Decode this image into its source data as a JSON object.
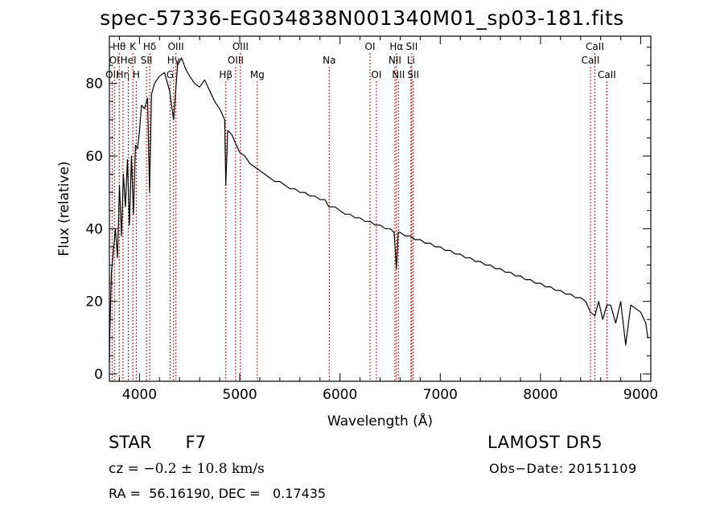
{
  "chart_data": {
    "type": "line",
    "title": "spec-57336-EG034838N001340M01_sp03-181.fits",
    "xlabel": "Wavelength (Å)",
    "ylabel": "Flux (relative)",
    "xlim": [
      3700,
      9100
    ],
    "ylim": [
      -2,
      93
    ],
    "x_ticks": [
      4000,
      5000,
      6000,
      7000,
      8000,
      9000
    ],
    "y_ticks": [
      0,
      20,
      40,
      60,
      80
    ],
    "grid": false,
    "line_color": "#000000",
    "marker_color": "#cc0000",
    "series": [
      {
        "x": [
          3700,
          3705,
          3720,
          3740,
          3760,
          3780,
          3800,
          3820,
          3840,
          3860,
          3880,
          3900,
          3920,
          3940,
          3960,
          3980,
          4000,
          4020,
          4050,
          4080,
          4100,
          4120,
          4150,
          4200,
          4250,
          4300,
          4340,
          4380,
          4420,
          4460,
          4500,
          4550,
          4600,
          4650,
          4700,
          4750,
          4800,
          4850,
          4861,
          4880,
          4920,
          4950,
          5000,
          5050,
          5100,
          5150,
          5200,
          5250,
          5300,
          5350,
          5400,
          5450,
          5500,
          5550,
          5600,
          5650,
          5700,
          5750,
          5800,
          5850,
          5890,
          5950,
          6000,
          6050,
          6100,
          6150,
          6200,
          6250,
          6300,
          6350,
          6400,
          6450,
          6500,
          6540,
          6563,
          6580,
          6600,
          6650,
          6700,
          6750,
          6800,
          6850,
          6900,
          6950,
          7000,
          7050,
          7100,
          7150,
          7200,
          7250,
          7300,
          7350,
          7400,
          7450,
          7500,
          7550,
          7600,
          7650,
          7700,
          7750,
          7800,
          7850,
          7900,
          7950,
          8000,
          8050,
          8100,
          8150,
          8200,
          8250,
          8300,
          8350,
          8400,
          8450,
          8498,
          8542,
          8580,
          8620,
          8662,
          8700,
          8750,
          8800,
          8850,
          8900,
          8950,
          9000,
          9050,
          9070
        ],
        "y": [
          3,
          12,
          28,
          34,
          40,
          32,
          52,
          38,
          55,
          46,
          59,
          41,
          60,
          44,
          63,
          62,
          67,
          74,
          73,
          76,
          50,
          77,
          80,
          82,
          83,
          78,
          70,
          85,
          87,
          84,
          82,
          80,
          79,
          81,
          78,
          75,
          73,
          70,
          52,
          67,
          66,
          64,
          61,
          60,
          58,
          57,
          56,
          55,
          54,
          53,
          53,
          52,
          51,
          51,
          50,
          50,
          49,
          49,
          48,
          48,
          46,
          46,
          45,
          44,
          44,
          43,
          43,
          42,
          42,
          41,
          41,
          40,
          40,
          39,
          29,
          39,
          39,
          38,
          38,
          37,
          37,
          36,
          36,
          35,
          35,
          34,
          34,
          33,
          33,
          32,
          32,
          31,
          31,
          30,
          30,
          29,
          29,
          28,
          28,
          27,
          27,
          26,
          26,
          25,
          25,
          24,
          24,
          23,
          23,
          22,
          22,
          21,
          21,
          20,
          17,
          16,
          20,
          15,
          19,
          19,
          14,
          20,
          8,
          19,
          18,
          17,
          14,
          10
        ]
      }
    ],
    "line_markers": [
      {
        "label": "OII",
        "wavelength": 3727,
        "row": 3
      },
      {
        "label": "Hθ",
        "wavelength": 3798,
        "row": 1
      },
      {
        "label": "OI",
        "wavelength": 3750,
        "row": 2
      },
      {
        "label": "Hη",
        "wavelength": 3835,
        "row": 3
      },
      {
        "label": "HeI",
        "wavelength": 3889,
        "row": 2
      },
      {
        "label": "K",
        "wavelength": 3934,
        "row": 1
      },
      {
        "label": "H",
        "wavelength": 3968,
        "row": 3
      },
      {
        "label": "SII",
        "wavelength": 4070,
        "row": 2
      },
      {
        "label": "Hδ",
        "wavelength": 4102,
        "row": 1
      },
      {
        "label": "OIII",
        "wavelength": 4363,
        "row": 1
      },
      {
        "label": "Hγ",
        "wavelength": 4340,
        "row": 2
      },
      {
        "label": "G",
        "wavelength": 4305,
        "row": 3
      },
      {
        "label": "Hβ",
        "wavelength": 4861,
        "row": 3
      },
      {
        "label": "OIII",
        "wavelength": 4959,
        "row": 2
      },
      {
        "label": "OIII",
        "wavelength": 5007,
        "row": 1
      },
      {
        "label": "Mg",
        "wavelength": 5175,
        "row": 3
      },
      {
        "label": "Na",
        "wavelength": 5893,
        "row": 2
      },
      {
        "label": "OI",
        "wavelength": 6300,
        "row": 1
      },
      {
        "label": "OI",
        "wavelength": 6363,
        "row": 3
      },
      {
        "label": "NII",
        "wavelength": 6548,
        "row": 2
      },
      {
        "label": "Hα",
        "wavelength": 6563,
        "row": 1
      },
      {
        "label": "NII",
        "wavelength": 6583,
        "row": 3
      },
      {
        "label": "SII",
        "wavelength": 6716,
        "row": 1
      },
      {
        "label": "Li",
        "wavelength": 6708,
        "row": 2
      },
      {
        "label": "SII",
        "wavelength": 6731,
        "row": 3
      },
      {
        "label": "CaII",
        "wavelength": 8498,
        "row": 2
      },
      {
        "label": "CaII",
        "wavelength": 8542,
        "row": 1
      },
      {
        "label": "CaII",
        "wavelength": 8662,
        "row": 3
      }
    ]
  },
  "info": {
    "object_class": "STAR",
    "subclass": "F7",
    "survey": "LAMOST DR5",
    "cz_label": "cz =",
    "cz_value": "−0.2 ± 10.8 km/s",
    "obs_date": "Obs−Date: 20151109",
    "radec": "RA =  56.16190, DEC =   0.17435"
  }
}
